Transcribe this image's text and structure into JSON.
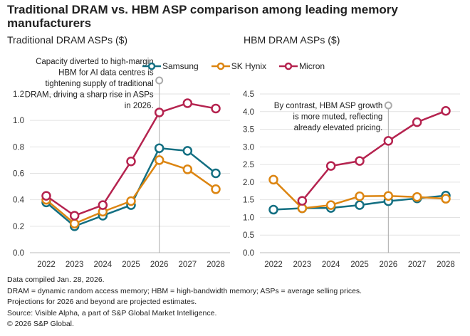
{
  "title": "Traditional DRAM vs. HBM ASP comparison among leading memory manufacturers",
  "colors": {
    "Samsung": "#136f82",
    "SK Hynix": "#dc8511",
    "Micron": "#b5234f",
    "annotation": "#aaaaaa"
  },
  "legend": [
    "Samsung",
    "SK Hynix",
    "Micron"
  ],
  "chart_data": [
    {
      "type": "line",
      "title": "Traditional DRAM ASPs ($)",
      "categories": [
        "2022",
        "2023",
        "2024",
        "2025",
        "2026",
        "2027",
        "2028"
      ],
      "ylim": [
        0,
        1.3
      ],
      "yticks": [
        "0.0",
        "0.2",
        "0.4",
        "0.6",
        "0.8",
        "1.0",
        "1.2"
      ],
      "grid": true,
      "legend": "top",
      "series": [
        {
          "name": "Samsung",
          "values": [
            0.38,
            0.2,
            0.28,
            0.36,
            0.79,
            0.77,
            0.6
          ]
        },
        {
          "name": "SK Hynix",
          "values": [
            0.4,
            0.22,
            0.31,
            0.39,
            0.7,
            0.63,
            0.48
          ]
        },
        {
          "name": "Micron",
          "values": [
            0.43,
            0.28,
            0.36,
            0.69,
            1.06,
            1.13,
            1.09
          ]
        }
      ],
      "annotation": {
        "x": "2026",
        "lines": [
          "Capacity diverted to high-margin",
          "HBM for AI data centres is",
          "tightening supply of traditional",
          "DRAM, driving a sharp rise in ASPs",
          "in 2026."
        ]
      }
    },
    {
      "type": "line",
      "title": "HBM DRAM ASPs ($)",
      "categories": [
        "2022",
        "2023",
        "2024",
        "2025",
        "2026",
        "2027",
        "2028"
      ],
      "ylim": [
        0,
        4.5
      ],
      "yticks": [
        "0.0",
        "0.5",
        "1.0",
        "1.5",
        "2.0",
        "2.5",
        "3.0",
        "3.5",
        "4.0",
        "4.5"
      ],
      "grid": true,
      "legend": "top",
      "series": [
        {
          "name": "Samsung",
          "values": [
            1.22,
            1.26,
            1.27,
            1.35,
            1.46,
            1.54,
            1.62
          ]
        },
        {
          "name": "SK Hynix",
          "values": [
            2.07,
            1.26,
            1.35,
            1.6,
            1.61,
            1.58,
            1.53
          ]
        },
        {
          "name": "Micron",
          "values": [
            null,
            1.47,
            2.46,
            2.6,
            3.17,
            3.7,
            4.02
          ]
        }
      ],
      "annotation": {
        "x": "2026",
        "lines": [
          "By contrast, HBM ASP growth",
          "is more muted, reflecting",
          "already elevated pricing."
        ]
      }
    }
  ],
  "footnotes": [
    "Data compiled Jan. 28, 2026.",
    "DRAM = dynamic random access memory; HBM = high-bandwidth memory; ASPs = average selling prices.",
    "Projections for 2026 and beyond are projected estimates.",
    "Source: Visible Alpha, a part of S&P Global Market Intelligence.",
    "© 2026 S&P Global."
  ]
}
